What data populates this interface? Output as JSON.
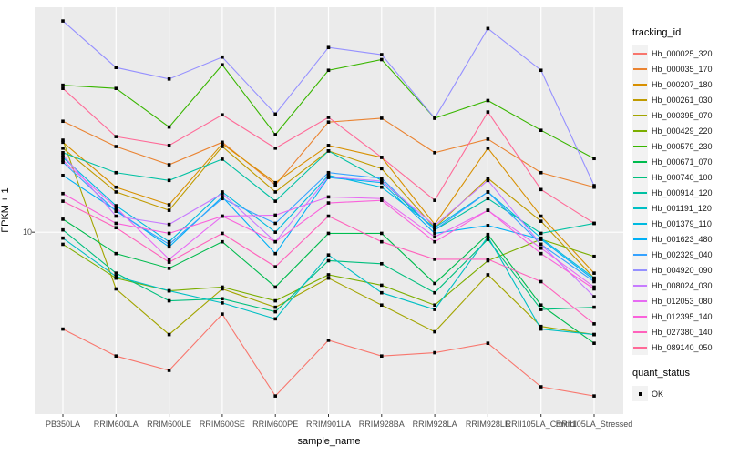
{
  "figure": {
    "y_axis_title": "FPKM + 1",
    "x_axis_title": "sample_name",
    "y_tick_label": "10",
    "legend_tracking_title": "tracking_id",
    "legend_quant_title": "quant_status",
    "legend_quant_item": "OK"
  },
  "chart_data": {
    "type": "line",
    "title": "",
    "xlabel": "sample_name",
    "ylabel": "FPKM + 1",
    "y_scale": "log10",
    "ylim": [
      2.05,
      71
    ],
    "y_ticks": [
      10
    ],
    "grid": "white major gridlines on gray panel",
    "panel_background": "#EBEBEB",
    "gridline_color": "#FFFFFF",
    "marker": "black-square",
    "legend_position": "right",
    "x": [
      "PB350LA",
      "RRIM600LA",
      "RRIM600LE",
      "RRIM600SE",
      "RRIM600PE",
      "RRIM901LA",
      "RRIM928BA",
      "RRIM928LA",
      "RRIM928LE",
      "RRII105LA_Control",
      "RRII105LA_Stressed"
    ],
    "series": [
      {
        "name": "Hb_000025_320",
        "color": "#F8766D",
        "values": [
          4.3,
          3.4,
          3.0,
          4.9,
          2.4,
          3.9,
          3.4,
          3.5,
          3.8,
          2.6,
          2.4
        ]
      },
      {
        "name": "Hb_000035_170",
        "color": "#EA8331",
        "values": [
          26.3,
          21.1,
          18.0,
          21.9,
          15.1,
          26.1,
          27.0,
          20.0,
          22.5,
          16.8,
          14.8
        ]
      },
      {
        "name": "Hb_000207_180",
        "color": "#D89000",
        "values": [
          21.9,
          14.8,
          12.7,
          21.6,
          15.4,
          21.3,
          19.2,
          10.7,
          20.8,
          11.5,
          7.0
        ]
      },
      {
        "name": "Hb_000261_030",
        "color": "#C09B00",
        "values": [
          20.8,
          14.2,
          12.1,
          21.1,
          14.2,
          20.3,
          17.4,
          10.4,
          16.0,
          11.0,
          6.7
        ]
      },
      {
        "name": "Hb_000395_070",
        "color": "#A3A500",
        "values": [
          22.3,
          6.1,
          4.1,
          6.1,
          5.2,
          6.7,
          5.3,
          4.2,
          6.9,
          4.4,
          4.1
        ]
      },
      {
        "name": "Hb_000429_220",
        "color": "#7CAE00",
        "values": [
          9.0,
          6.7,
          6.0,
          6.2,
          5.5,
          6.9,
          6.3,
          5.3,
          7.8,
          9.4,
          8.1
        ]
      },
      {
        "name": "Hb_000579_230",
        "color": "#39B600",
        "values": [
          36.0,
          35.0,
          25.0,
          43.0,
          23.4,
          41.0,
          45.0,
          27.0,
          31.5,
          24.3,
          19.0
        ]
      },
      {
        "name": "Hb_000671_070",
        "color": "#00BB4E",
        "values": [
          11.2,
          8.3,
          7.3,
          9.2,
          6.2,
          9.9,
          9.9,
          6.4,
          9.8,
          5.3,
          3.8
        ]
      },
      {
        "name": "Hb_000740_100",
        "color": "#00BF7D",
        "values": [
          10.2,
          7.0,
          5.5,
          5.6,
          5.0,
          7.8,
          7.6,
          5.9,
          9.4,
          5.1,
          5.2
        ]
      },
      {
        "name": "Hb_000914_120",
        "color": "#00C1A3",
        "values": [
          20.0,
          16.8,
          15.7,
          18.9,
          13.1,
          20.3,
          15.7,
          10.2,
          13.4,
          9.9,
          10.8
        ]
      },
      {
        "name": "Hb_001191_120",
        "color": "#00BFC4",
        "values": [
          9.5,
          6.8,
          6.0,
          5.4,
          4.7,
          8.2,
          5.9,
          5.1,
          9.6,
          4.3,
          4.1
        ]
      },
      {
        "name": "Hb_001379_110",
        "color": "#00BAE0",
        "values": [
          19.2,
          12.6,
          9.2,
          14.2,
          10.0,
          16.4,
          14.8,
          10.4,
          14.2,
          9.5,
          6.7
        ]
      },
      {
        "name": "Hb_001623_480",
        "color": "#00B0F6",
        "values": [
          16.4,
          12.1,
          8.8,
          13.6,
          8.3,
          16.1,
          15.4,
          9.9,
          10.6,
          9.4,
          6.6
        ]
      },
      {
        "name": "Hb_002329_040",
        "color": "#35A2FF",
        "values": [
          18.4,
          12.0,
          9.0,
          13.4,
          10.8,
          16.8,
          16.0,
          10.2,
          14.2,
          9.0,
          6.5
        ]
      },
      {
        "name": "Hb_004920_090",
        "color": "#9590FF",
        "values": [
          63.0,
          42.0,
          38.0,
          46.0,
          28.0,
          50.0,
          47.0,
          27.0,
          59.0,
          41.0,
          15.0
        ]
      },
      {
        "name": "Hb_008024_030",
        "color": "#C77CFF",
        "values": [
          19.6,
          11.5,
          10.7,
          14.0,
          9.2,
          16.2,
          15.6,
          10.6,
          15.7,
          9.0,
          5.7
        ]
      },
      {
        "name": "Hb_012053_080",
        "color": "#E76BF3",
        "values": [
          18.7,
          12.4,
          7.9,
          11.5,
          11.6,
          13.6,
          13.4,
          9.6,
          12.1,
          8.7,
          6.2
        ]
      },
      {
        "name": "Hb_012395_140",
        "color": "#FA62DB",
        "values": [
          14.0,
          10.8,
          9.9,
          11.5,
          9.2,
          12.9,
          13.2,
          9.2,
          12.1,
          8.3,
          6.1
        ]
      },
      {
        "name": "Hb_027380_140",
        "color": "#FF62BC",
        "values": [
          13.1,
          10.4,
          7.7,
          9.9,
          7.4,
          11.5,
          9.2,
          7.9,
          7.9,
          6.5,
          4.5
        ]
      },
      {
        "name": "Hb_089140_050",
        "color": "#FF6A98",
        "values": [
          35.0,
          23.0,
          21.3,
          27.8,
          20.8,
          27.2,
          19.2,
          13.2,
          28.5,
          14.5,
          10.8
        ]
      }
    ],
    "quant_status_legend": {
      "title": "quant_status",
      "items": [
        {
          "label": "OK",
          "marker": "black-square"
        }
      ]
    }
  }
}
